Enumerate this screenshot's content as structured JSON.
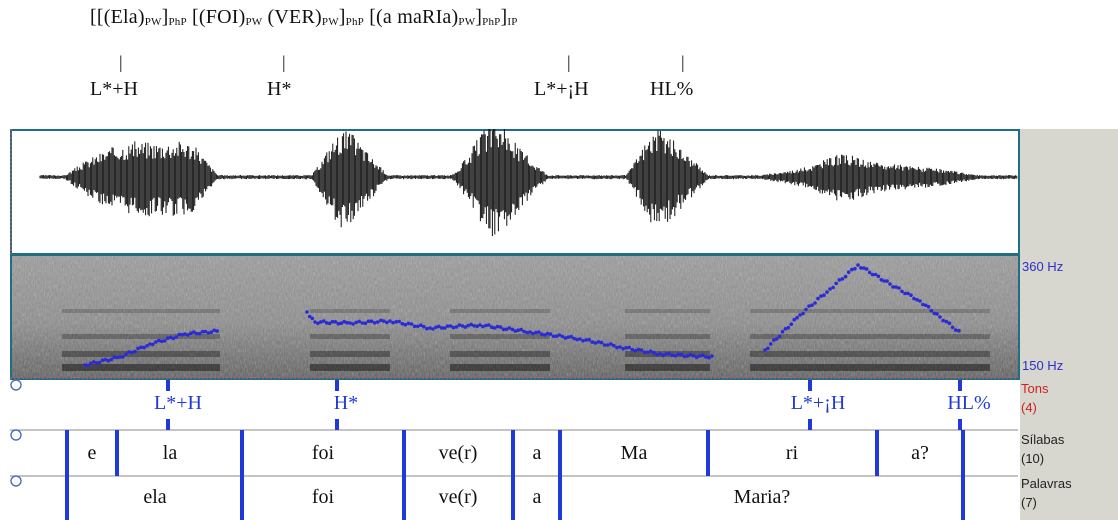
{
  "notation": {
    "parts": [
      {
        "t": "[[(Ela)",
        "s": false
      },
      {
        "t": "PW",
        "s": true
      },
      {
        "t": "]",
        "s": false
      },
      {
        "t": "PhP",
        "s": true
      },
      {
        "t": " [(FOI)",
        "s": false
      },
      {
        "t": "PW",
        "s": true
      },
      {
        "t": " (VER)",
        "s": false
      },
      {
        "t": "PW",
        "s": true
      },
      {
        "t": "]",
        "s": false
      },
      {
        "t": "PhP",
        "s": true
      },
      {
        "t": " [(a maRIa)",
        "s": false
      },
      {
        "t": "PW",
        "s": true
      },
      {
        "t": "]",
        "s": false
      },
      {
        "t": "PhP",
        "s": true
      },
      {
        "t": "]",
        "s": false
      },
      {
        "t": "IP",
        "s": true
      }
    ],
    "tone_labels": [
      "L*+H",
      "H*",
      "L*+¡H",
      "HL%"
    ]
  },
  "spectrogram": {
    "hz_top": "360 Hz",
    "hz_bottom": "150 Hz"
  },
  "tiers": [
    {
      "name": "Tons",
      "count": "(4)",
      "count_color": "#d02020"
    },
    {
      "name": "Sílabas",
      "count": "(10)",
      "count_color": "#222222"
    },
    {
      "name": "Palavras",
      "count": "(7)",
      "count_color": "#222222"
    }
  ],
  "tones": [
    "L*+H",
    "H*",
    "L*+¡H",
    "HL%"
  ],
  "syllables": [
    "e",
    "la",
    "foi",
    "ve(r)",
    "a",
    "Ma",
    "ri",
    "a?"
  ],
  "words": [
    "ela",
    "foi",
    "ve(r)",
    "a",
    "Maria?"
  ],
  "colors": {
    "pitch": "#2b2bd6",
    "boundary": "#1f3ad6",
    "tone_text": "#1f3ad6",
    "frame": "#1e6e84"
  }
}
